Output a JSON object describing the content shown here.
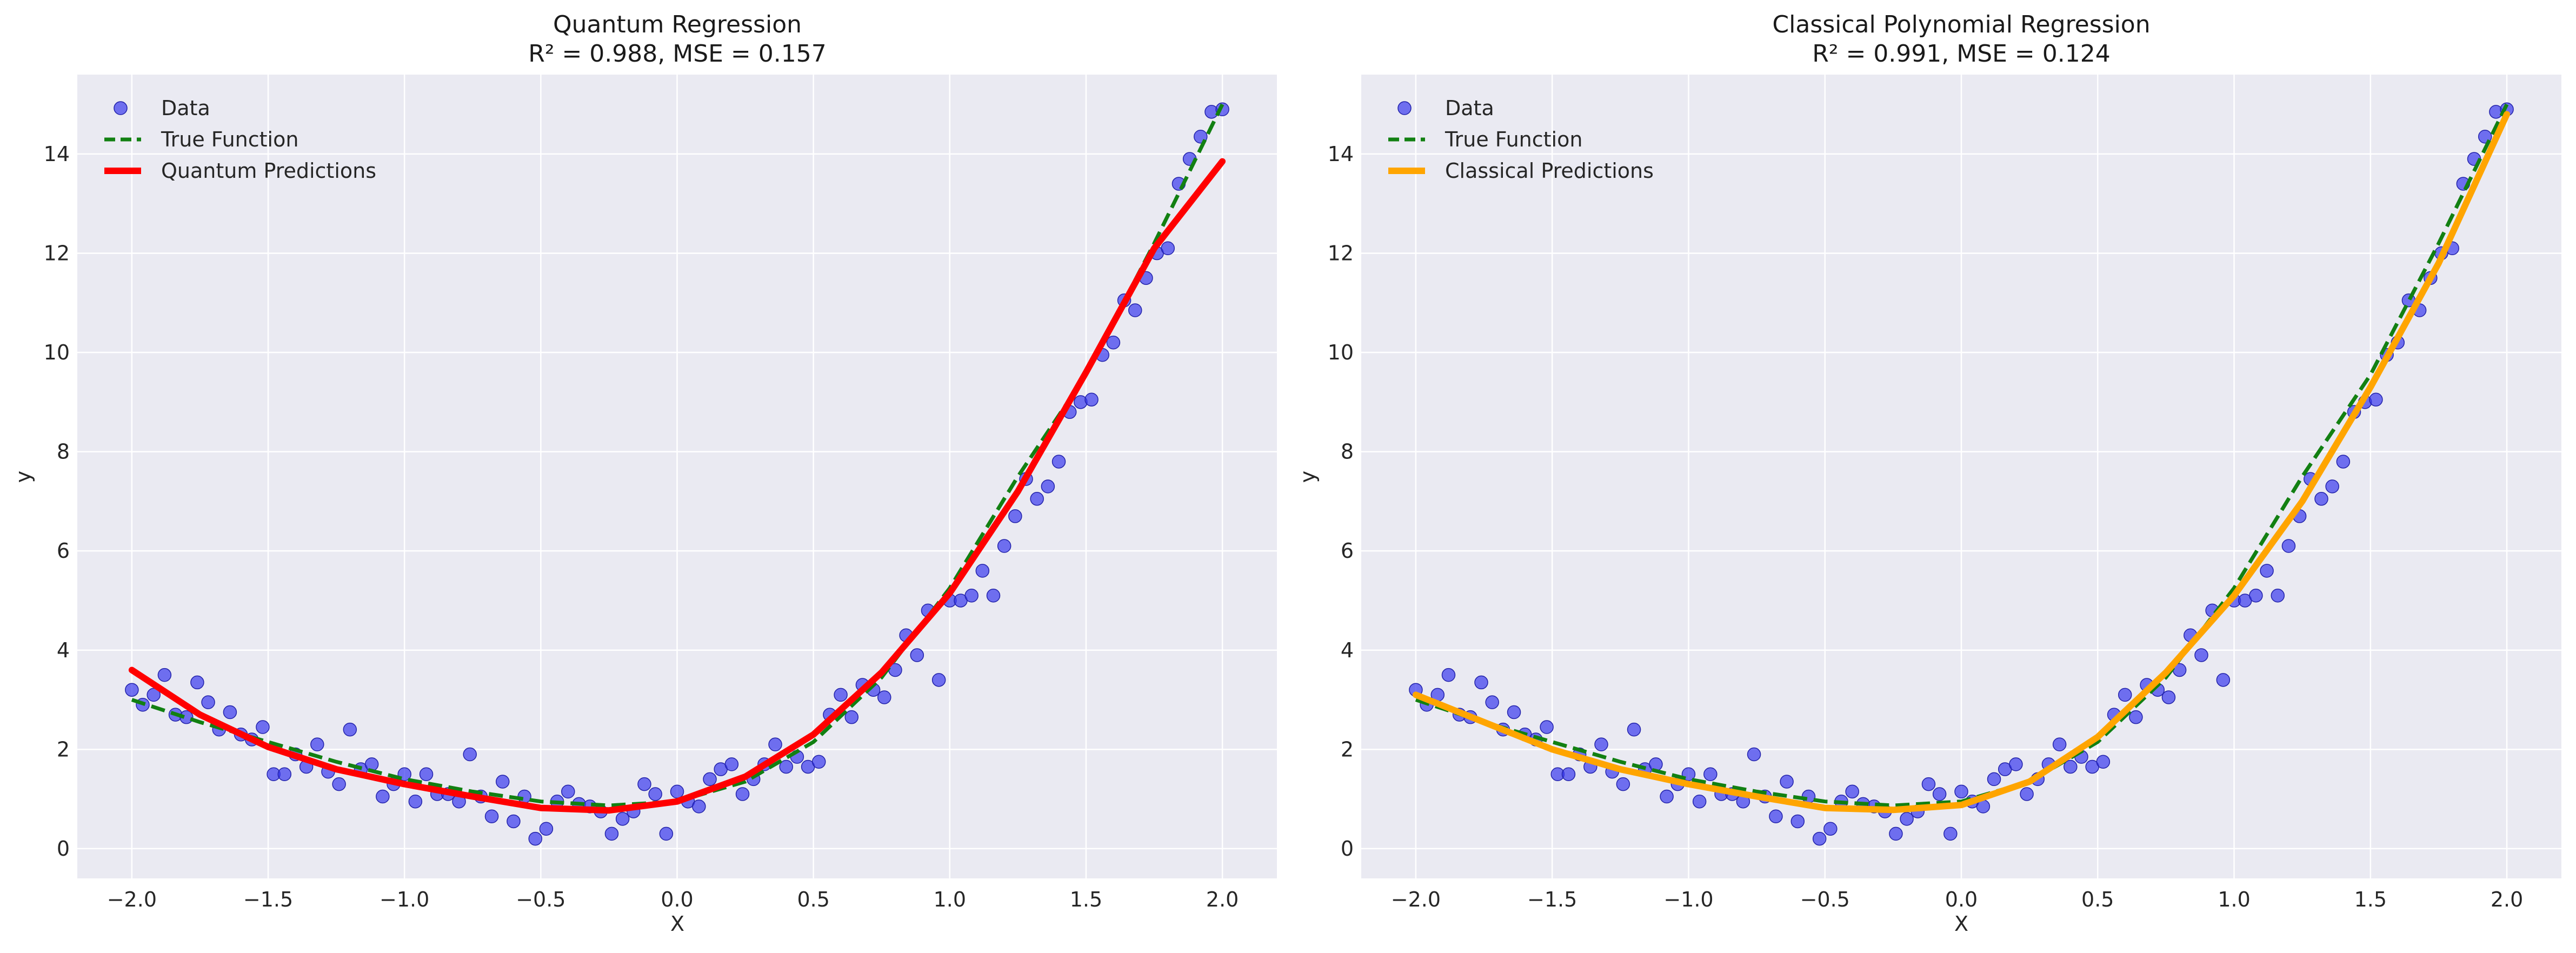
{
  "chart_data": [
    {
      "type": "scatter",
      "title_line1": "Quantum Regression",
      "title_line2": "R² = 0.988, MSE = 0.157",
      "xlabel": "X",
      "ylabel": "y",
      "xlim": [
        -2.2,
        2.2
      ],
      "ylim": [
        -0.6,
        15.6
      ],
      "xticks": [
        -2.0,
        -1.5,
        -1.0,
        -0.5,
        0.0,
        0.5,
        1.0,
        1.5,
        2.0
      ],
      "xtick_labels": [
        "−2.0",
        "−1.5",
        "−1.0",
        "−0.5",
        "0.0",
        "0.5",
        "1.0",
        "1.5",
        "2.0"
      ],
      "yticks": [
        0,
        2,
        4,
        6,
        8,
        10,
        12,
        14
      ],
      "ytick_labels": [
        "0",
        "2",
        "4",
        "6",
        "8",
        "10",
        "12",
        "14"
      ],
      "grid": true,
      "legend_position": "upper left",
      "legend": [
        "Data",
        "True Function",
        "Quantum Predictions"
      ],
      "colors": {
        "data": "#3333ee",
        "true": "#128012",
        "pred": "#ff0000",
        "bg": "#eaeaf2"
      },
      "pred_curve": {
        "x": [
          -2.0,
          -1.75,
          -1.5,
          -1.25,
          -1.0,
          -0.75,
          -0.5,
          -0.25,
          0.0,
          0.25,
          0.5,
          0.75,
          1.0,
          1.25,
          1.5,
          1.75,
          2.0
        ],
        "y": [
          3.6,
          2.7,
          2.05,
          1.6,
          1.3,
          1.05,
          0.82,
          0.77,
          0.95,
          1.45,
          2.3,
          3.55,
          5.15,
          7.2,
          9.6,
          12.1,
          13.85
        ]
      }
    },
    {
      "type": "scatter",
      "title_line1": "Classical Polynomial Regression",
      "title_line2": "R² = 0.991, MSE = 0.124",
      "xlabel": "X",
      "ylabel": "y",
      "xlim": [
        -2.2,
        2.2
      ],
      "ylim": [
        -0.6,
        15.6
      ],
      "xticks": [
        -2.0,
        -1.5,
        -1.0,
        -0.5,
        0.0,
        0.5,
        1.0,
        1.5,
        2.0
      ],
      "xtick_labels": [
        "−2.0",
        "−1.5",
        "−1.0",
        "−0.5",
        "0.0",
        "0.5",
        "1.0",
        "1.5",
        "2.0"
      ],
      "yticks": [
        0,
        2,
        4,
        6,
        8,
        10,
        12,
        14
      ],
      "ytick_labels": [
        "0",
        "2",
        "4",
        "6",
        "8",
        "10",
        "12",
        "14"
      ],
      "grid": true,
      "legend_position": "upper left",
      "legend": [
        "Data",
        "True Function",
        "Classical Predictions"
      ],
      "colors": {
        "data": "#3333ee",
        "true": "#128012",
        "pred": "#ffa500",
        "bg": "#eaeaf2"
      },
      "pred_curve": {
        "x": [
          -2.0,
          -1.75,
          -1.5,
          -1.25,
          -1.0,
          -0.75,
          -0.5,
          -0.25,
          0.0,
          0.25,
          0.5,
          0.75,
          1.0,
          1.25,
          1.5,
          1.75,
          2.0
        ],
        "y": [
          3.1,
          2.55,
          2.0,
          1.6,
          1.3,
          1.05,
          0.82,
          0.78,
          0.88,
          1.35,
          2.25,
          3.55,
          5.1,
          7.0,
          9.3,
          11.8,
          14.8
        ]
      }
    }
  ],
  "shared": {
    "true_function": {
      "x": [
        -2.0,
        -1.75,
        -1.5,
        -1.25,
        -1.0,
        -0.75,
        -0.5,
        -0.25,
        0.0,
        0.25,
        0.5,
        0.75,
        1.0,
        1.25,
        1.5,
        1.75,
        2.0
      ],
      "y": [
        3.0,
        2.55,
        2.15,
        1.75,
        1.4,
        1.15,
        0.95,
        0.87,
        0.95,
        1.35,
        2.15,
        3.45,
        5.25,
        7.5,
        9.55,
        12.2,
        15.0
      ]
    },
    "data_points": {
      "x": [
        -2.0,
        -1.96,
        -1.92,
        -1.88,
        -1.84,
        -1.8,
        -1.76,
        -1.72,
        -1.68,
        -1.64,
        -1.6,
        -1.56,
        -1.52,
        -1.48,
        -1.44,
        -1.4,
        -1.36,
        -1.32,
        -1.28,
        -1.24,
        -1.2,
        -1.16,
        -1.12,
        -1.08,
        -1.04,
        -1.0,
        -0.96,
        -0.92,
        -0.88,
        -0.84,
        -0.8,
        -0.76,
        -0.72,
        -0.68,
        -0.64,
        -0.6,
        -0.56,
        -0.52,
        -0.48,
        -0.44,
        -0.4,
        -0.36,
        -0.32,
        -0.28,
        -0.24,
        -0.2,
        -0.16,
        -0.12,
        -0.08,
        -0.04,
        0.0,
        0.04,
        0.08,
        0.12,
        0.16,
        0.2,
        0.24,
        0.28,
        0.32,
        0.36,
        0.4,
        0.44,
        0.48,
        0.52,
        0.56,
        0.6,
        0.64,
        0.68,
        0.72,
        0.76,
        0.8,
        0.84,
        0.88,
        0.92,
        0.96,
        1.0,
        1.04,
        1.08,
        1.12,
        1.16,
        1.2,
        1.24,
        1.28,
        1.32,
        1.36,
        1.4,
        1.44,
        1.48,
        1.52,
        1.56,
        1.6,
        1.64,
        1.68,
        1.72,
        1.76,
        1.8,
        1.84,
        1.88,
        1.92,
        1.96,
        2.0
      ],
      "y": [
        3.2,
        2.9,
        3.1,
        3.5,
        2.7,
        2.65,
        3.35,
        2.95,
        2.4,
        2.75,
        2.3,
        2.2,
        2.45,
        1.5,
        1.5,
        1.9,
        1.65,
        2.1,
        1.55,
        1.3,
        2.4,
        1.6,
        1.7,
        1.05,
        1.3,
        1.5,
        0.95,
        1.5,
        1.1,
        1.1,
        0.95,
        1.9,
        1.05,
        0.65,
        1.35,
        0.55,
        1.05,
        0.2,
        0.4,
        0.95,
        1.15,
        0.9,
        0.85,
        0.75,
        0.3,
        0.6,
        0.75,
        1.3,
        1.1,
        0.3,
        1.15,
        0.95,
        0.85,
        1.4,
        1.6,
        1.7,
        1.1,
        1.4,
        1.7,
        2.1,
        1.65,
        1.85,
        1.65,
        1.75,
        2.7,
        3.1,
        2.65,
        3.3,
        3.2,
        3.05,
        3.6,
        4.3,
        3.9,
        4.8,
        3.4,
        5.0,
        5.0,
        5.1,
        5.6,
        5.1,
        6.1,
        6.7,
        7.45,
        7.05,
        7.3,
        7.8,
        8.8,
        9.0,
        9.05,
        9.95,
        10.2,
        11.05,
        10.85,
        11.5,
        12.0,
        12.1,
        13.4,
        13.9,
        14.35,
        14.85,
        14.9
      ]
    }
  }
}
